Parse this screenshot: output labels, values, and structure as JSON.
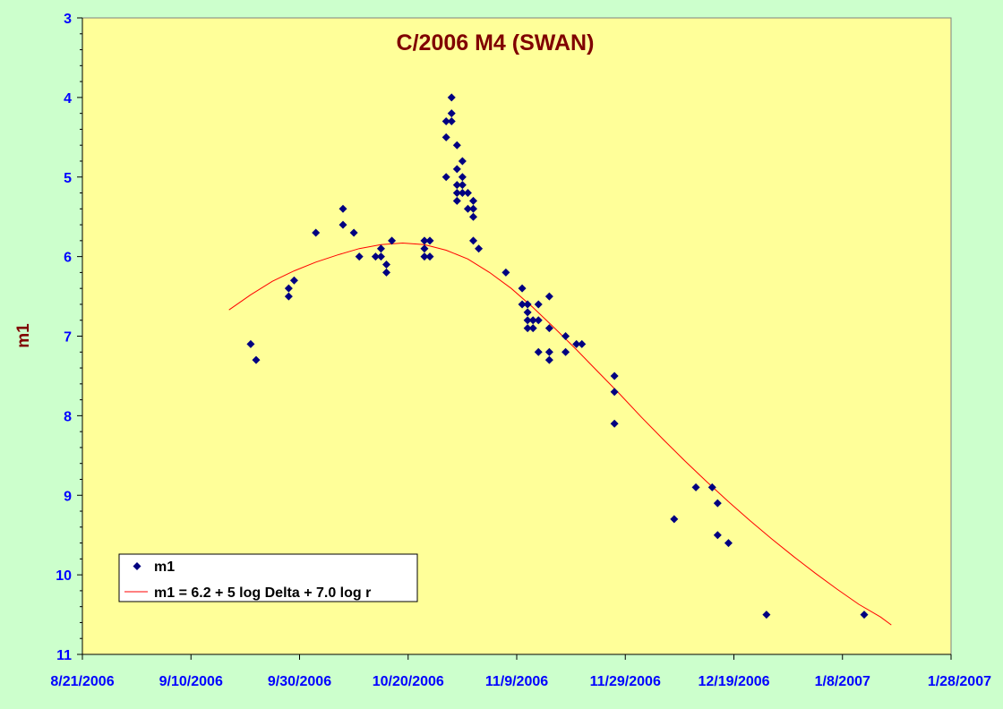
{
  "colors": {
    "page_bg": "#ccffcc",
    "plot_bg": "#ffff99",
    "axis_text": "#0000ff",
    "title": "#800000",
    "points": "#000080",
    "fit_line": "#ff0000"
  },
  "chart_data": {
    "type": "scatter",
    "title": "C/2006 M4 (SWAN)",
    "xlabel": "",
    "ylabel": "m1",
    "x_start": "8/21/2006",
    "xlim": [
      "8/21/2006",
      "1/28/2007"
    ],
    "x_ticks": [
      "8/21/2006",
      "9/10/2006",
      "9/30/2006",
      "10/20/2006",
      "11/9/2006",
      "11/29/2006",
      "12/19/2006",
      "1/8/2007",
      "1/28/2007"
    ],
    "ylim": [
      3,
      11
    ],
    "y_inverted": true,
    "y_ticks": [
      "3",
      "4",
      "5",
      "6",
      "7",
      "8",
      "9",
      "10",
      "11"
    ],
    "grid": false,
    "legend": {
      "placement": "bottom-left",
      "entries": [
        "m1",
        "m1 = 6.2 + 5 log Delta + 7.0 log r"
      ]
    },
    "series": [
      {
        "name": "m1",
        "kind": "scatter",
        "points": [
          [
            "9/21/2006",
            7.1
          ],
          [
            "9/22/2006",
            7.3
          ],
          [
            "9/28/2006",
            6.4
          ],
          [
            "9/28/2006",
            6.5
          ],
          [
            "9/29/2006",
            6.3
          ],
          [
            "10/3/2006",
            5.7
          ],
          [
            "10/8/2006",
            5.4
          ],
          [
            "10/8/2006",
            5.6
          ],
          [
            "10/10/2006",
            5.7
          ],
          [
            "10/11/2006",
            6.0
          ],
          [
            "10/14/2006",
            6.0
          ],
          [
            "10/15/2006",
            5.9
          ],
          [
            "10/15/2006",
            6.0
          ],
          [
            "10/16/2006",
            6.1
          ],
          [
            "10/16/2006",
            6.2
          ],
          [
            "10/17/2006",
            5.8
          ],
          [
            "10/23/2006",
            5.8
          ],
          [
            "10/23/2006",
            5.9
          ],
          [
            "10/23/2006",
            6.0
          ],
          [
            "10/24/2006",
            5.8
          ],
          [
            "10/24/2006",
            6.0
          ],
          [
            "10/27/2006",
            4.3
          ],
          [
            "10/27/2006",
            4.5
          ],
          [
            "10/27/2006",
            5.0
          ],
          [
            "10/28/2006",
            4.0
          ],
          [
            "10/28/2006",
            4.2
          ],
          [
            "10/28/2006",
            4.3
          ],
          [
            "10/29/2006",
            4.6
          ],
          [
            "10/29/2006",
            4.9
          ],
          [
            "10/29/2006",
            5.1
          ],
          [
            "10/29/2006",
            5.2
          ],
          [
            "10/29/2006",
            5.3
          ],
          [
            "10/30/2006",
            4.8
          ],
          [
            "10/30/2006",
            5.0
          ],
          [
            "10/30/2006",
            5.1
          ],
          [
            "10/30/2006",
            5.2
          ],
          [
            "10/31/2006",
            5.2
          ],
          [
            "10/31/2006",
            5.4
          ],
          [
            "11/1/2006",
            5.3
          ],
          [
            "11/1/2006",
            5.4
          ],
          [
            "11/1/2006",
            5.5
          ],
          [
            "11/1/2006",
            5.8
          ],
          [
            "11/2/2006",
            5.9
          ],
          [
            "11/7/2006",
            6.2
          ],
          [
            "11/10/2006",
            6.4
          ],
          [
            "11/10/2006",
            6.6
          ],
          [
            "11/11/2006",
            6.6
          ],
          [
            "11/11/2006",
            6.7
          ],
          [
            "11/11/2006",
            6.8
          ],
          [
            "11/11/2006",
            6.9
          ],
          [
            "11/12/2006",
            6.8
          ],
          [
            "11/12/2006",
            6.9
          ],
          [
            "11/13/2006",
            6.6
          ],
          [
            "11/13/2006",
            6.8
          ],
          [
            "11/13/2006",
            7.2
          ],
          [
            "11/15/2006",
            6.5
          ],
          [
            "11/15/2006",
            6.9
          ],
          [
            "11/15/2006",
            7.2
          ],
          [
            "11/15/2006",
            7.3
          ],
          [
            "11/18/2006",
            7.0
          ],
          [
            "11/18/2006",
            7.2
          ],
          [
            "11/20/2006",
            7.1
          ],
          [
            "11/21/2006",
            7.1
          ],
          [
            "11/27/2006",
            7.5
          ],
          [
            "11/27/2006",
            7.7
          ],
          [
            "11/27/2006",
            8.1
          ],
          [
            "12/8/2006",
            9.3
          ],
          [
            "12/12/2006",
            8.9
          ],
          [
            "12/15/2006",
            8.9
          ],
          [
            "12/16/2006",
            9.1
          ],
          [
            "12/16/2006",
            9.5
          ],
          [
            "12/18/2006",
            9.6
          ],
          [
            "12/25/2006",
            10.5
          ],
          [
            "1/12/2007",
            10.5
          ]
        ]
      },
      {
        "name": "m1 = 6.2 + 5 log Delta + 7.0 log r",
        "kind": "line",
        "points": [
          [
            "9/17/2006",
            6.67
          ],
          [
            "9/21/2006",
            6.48
          ],
          [
            "9/25/2006",
            6.31
          ],
          [
            "9/29/2006",
            6.18
          ],
          [
            "10/3/2006",
            6.07
          ],
          [
            "10/7/2006",
            5.98
          ],
          [
            "10/11/2006",
            5.9
          ],
          [
            "10/15/2006",
            5.85
          ],
          [
            "10/19/2006",
            5.83
          ],
          [
            "10/23/2006",
            5.85
          ],
          [
            "10/27/2006",
            5.92
          ],
          [
            "10/31/2006",
            6.03
          ],
          [
            "11/4/2006",
            6.2
          ],
          [
            "11/8/2006",
            6.4
          ],
          [
            "11/12/2006",
            6.64
          ],
          [
            "11/16/2006",
            6.9
          ],
          [
            "11/20/2006",
            7.17
          ],
          [
            "11/24/2006",
            7.45
          ],
          [
            "11/28/2006",
            7.73
          ],
          [
            "12/2/2006",
            8.02
          ],
          [
            "12/6/2006",
            8.3
          ],
          [
            "12/10/2006",
            8.57
          ],
          [
            "12/14/2006",
            8.83
          ],
          [
            "12/18/2006",
            9.08
          ],
          [
            "12/22/2006",
            9.32
          ],
          [
            "12/26/2006",
            9.55
          ],
          [
            "12/30/2006",
            9.77
          ],
          [
            "1/3/2007",
            9.98
          ],
          [
            "1/7/2007",
            10.18
          ],
          [
            "1/11/2007",
            10.37
          ],
          [
            "1/15/2007",
            10.53
          ],
          [
            "1/17/2007",
            10.63
          ]
        ]
      }
    ]
  }
}
